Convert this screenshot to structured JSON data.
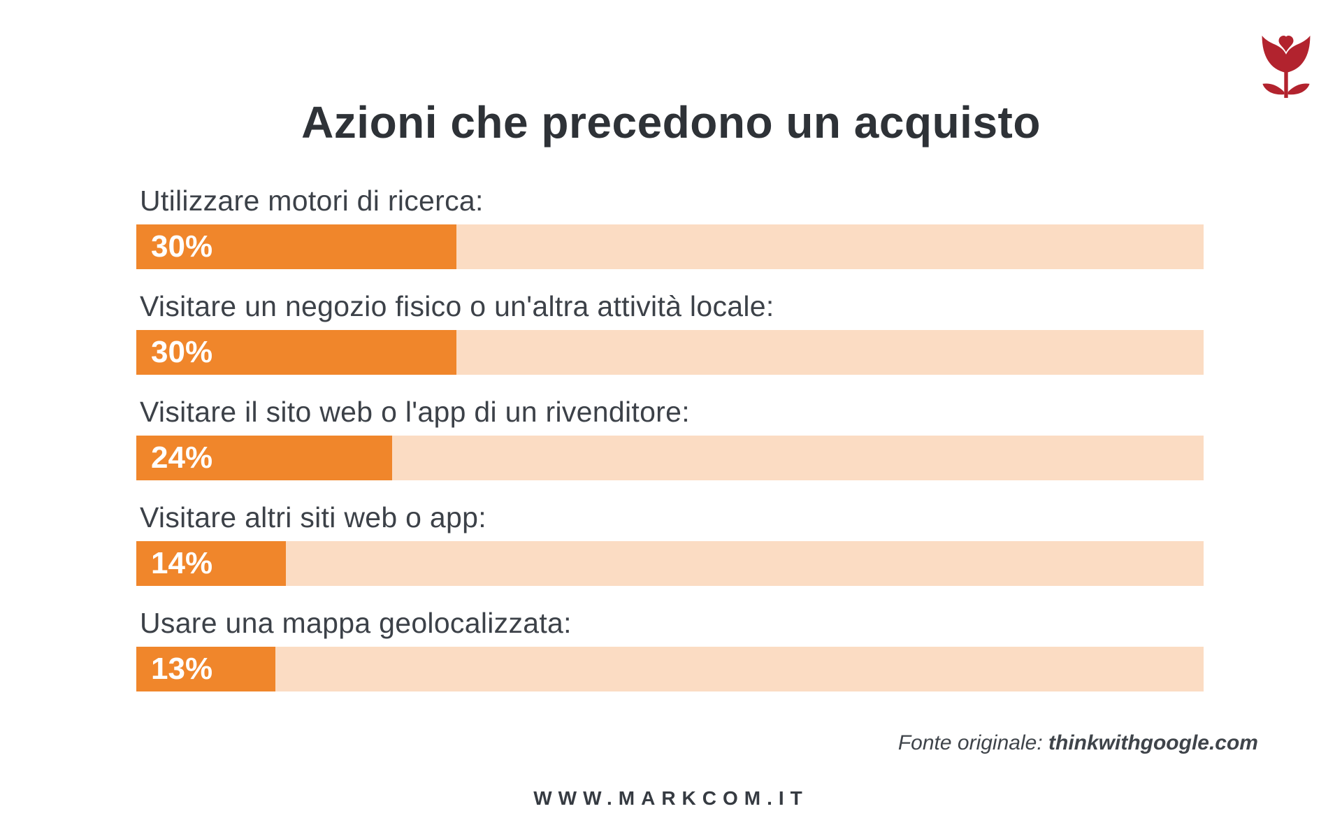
{
  "page": {
    "title": "Azioni che precedono un acquisto",
    "source_prefix": "Fonte originale: ",
    "source_name": "thinkwithgoogle.com",
    "website": "WWW.MARKCOM.IT",
    "logo": "tulip-heart-logo"
  },
  "colors": {
    "bar_fill": "#f0862b",
    "bar_track": "#fbdcc3",
    "title_text": "#2e3237",
    "label_text": "#3c4148",
    "value_text": "#ffffff",
    "logo_red": "#b2232e",
    "background": "#ffffff"
  },
  "chart_data": {
    "type": "bar",
    "orientation": "horizontal",
    "title": "Azioni che precedono un acquisto",
    "categories": [
      "Utilizzare motori di ricerca:",
      "Visitare un negozio fisico o un'altra attività locale:",
      "Visitare il sito web o l'app di un rivenditore:",
      "Visitare altri siti web o app:",
      "Usare una mappa geolocalizzata:"
    ],
    "values": [
      30,
      30,
      24,
      14,
      13
    ],
    "value_labels": [
      "30%",
      "30%",
      "24%",
      "14%",
      "13%"
    ],
    "unit": "%",
    "xlim": [
      0,
      100
    ],
    "grid": false,
    "legend": false,
    "bar_color": "#f0862b",
    "track_color": "#fbdcc3",
    "source": "Fonte originale: thinkwithgoogle.com"
  }
}
